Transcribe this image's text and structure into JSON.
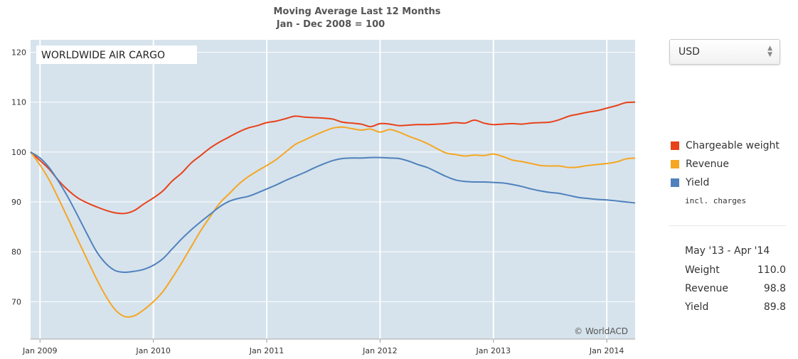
{
  "chart_data": {
    "type": "line",
    "title": "Moving Average Last 12 Months",
    "subtitle": "Jan - Dec 2008 = 100",
    "panel_label": "WORLDWIDE AIR CARGO",
    "watermark": "© WorldACD",
    "x_tick_labels": [
      "Jan 2009",
      "Jan 2010",
      "Jan 2011",
      "Jan 2012",
      "Jan 2013",
      "Jan 2014"
    ],
    "y_ticks": [
      70,
      80,
      90,
      100,
      110,
      120
    ],
    "ylim": [
      62.5,
      122.5
    ],
    "xlim": [
      "2008-12",
      "2014-04"
    ],
    "grid": true,
    "legend_position": "right",
    "x": [
      "2008-12",
      "2009-01",
      "2009-02",
      "2009-03",
      "2009-04",
      "2009-05",
      "2009-06",
      "2009-07",
      "2009-08",
      "2009-09",
      "2009-10",
      "2009-11",
      "2009-12",
      "2010-01",
      "2010-02",
      "2010-03",
      "2010-04",
      "2010-05",
      "2010-06",
      "2010-07",
      "2010-08",
      "2010-09",
      "2010-10",
      "2010-11",
      "2010-12",
      "2011-01",
      "2011-02",
      "2011-03",
      "2011-04",
      "2011-05",
      "2011-06",
      "2011-07",
      "2011-08",
      "2011-09",
      "2011-10",
      "2011-11",
      "2011-12",
      "2012-01",
      "2012-02",
      "2012-03",
      "2012-04",
      "2012-05",
      "2012-06",
      "2012-07",
      "2012-08",
      "2012-09",
      "2012-10",
      "2012-11",
      "2012-12",
      "2013-01",
      "2013-02",
      "2013-03",
      "2013-04",
      "2013-05",
      "2013-06",
      "2013-07",
      "2013-08",
      "2013-09",
      "2013-10",
      "2013-11",
      "2013-12",
      "2014-01",
      "2014-02",
      "2014-03",
      "2014-04"
    ],
    "series": [
      {
        "name": "Chargeable weight",
        "color": "#e8411a",
        "values": [
          100.0,
          98.3,
          96.5,
          94.2,
          92.3,
          90.8,
          89.8,
          89.0,
          88.3,
          87.8,
          87.7,
          88.3,
          89.6,
          90.8,
          92.2,
          94.2,
          95.8,
          97.8,
          99.3,
          100.8,
          102.0,
          103.0,
          104.0,
          104.8,
          105.3,
          105.9,
          106.2,
          106.7,
          107.2,
          107.0,
          106.9,
          106.8,
          106.6,
          106.0,
          105.8,
          105.6,
          105.1,
          105.7,
          105.6,
          105.3,
          105.4,
          105.5,
          105.5,
          105.6,
          105.7,
          105.9,
          105.8,
          106.4,
          105.8,
          105.5,
          105.6,
          105.7,
          105.6,
          105.8,
          105.9,
          106.0,
          106.5,
          107.2,
          107.6,
          108.0,
          108.3,
          108.8,
          109.3,
          109.9,
          110.0
        ]
      },
      {
        "name": "Revenue",
        "color": "#f5a623",
        "values": [
          100.0,
          97.4,
          94.3,
          90.5,
          86.5,
          82.4,
          78.4,
          74.5,
          71.0,
          68.3,
          67.0,
          67.2,
          68.4,
          70.0,
          72.0,
          74.8,
          77.8,
          81.0,
          84.2,
          87.0,
          89.7,
          91.6,
          93.5,
          95.0,
          96.2,
          97.3,
          98.5,
          100.0,
          101.5,
          102.4,
          103.3,
          104.1,
          104.8,
          105.0,
          104.7,
          104.4,
          104.6,
          104.0,
          104.5,
          104.0,
          103.2,
          102.5,
          101.7,
          100.7,
          99.8,
          99.5,
          99.2,
          99.4,
          99.3,
          99.6,
          99.1,
          98.4,
          98.1,
          97.7,
          97.3,
          97.2,
          97.2,
          96.9,
          97.0,
          97.3,
          97.5,
          97.7,
          98.0,
          98.6,
          98.8
        ]
      },
      {
        "name": "Yield",
        "color": "#4f81bd",
        "values": [
          100.0,
          98.8,
          96.8,
          94.0,
          90.8,
          87.2,
          83.5,
          80.0,
          77.6,
          76.2,
          75.9,
          76.1,
          76.5,
          77.3,
          78.6,
          80.6,
          82.6,
          84.4,
          86.0,
          87.5,
          89.0,
          90.1,
          90.7,
          91.1,
          91.8,
          92.6,
          93.4,
          94.3,
          95.1,
          95.9,
          96.8,
          97.6,
          98.3,
          98.7,
          98.8,
          98.8,
          98.9,
          98.9,
          98.8,
          98.7,
          98.2,
          97.5,
          96.9,
          96.0,
          95.1,
          94.4,
          94.1,
          94.0,
          94.0,
          93.9,
          93.8,
          93.5,
          93.1,
          92.6,
          92.2,
          91.9,
          91.7,
          91.3,
          90.9,
          90.7,
          90.5,
          90.4,
          90.2,
          90.0,
          89.8
        ]
      }
    ]
  },
  "currency_select": {
    "value": "USD"
  },
  "legend": {
    "items": [
      {
        "label": "Chargeable weight",
        "color": "#e8411a"
      },
      {
        "label": "Revenue",
        "color": "#f5a623"
      },
      {
        "label": "Yield",
        "color": "#4f81bd"
      }
    ],
    "note": "incl. charges"
  },
  "summary": {
    "period": "May '13 - Apr '14",
    "rows": [
      {
        "label": "Weight",
        "value": "110.0"
      },
      {
        "label": "Revenue",
        "value": "98.8"
      },
      {
        "label": "Yield",
        "value": "89.8"
      }
    ]
  },
  "colors": {
    "plot_background": "#d6e3ec",
    "gridline": "#ffffff"
  }
}
